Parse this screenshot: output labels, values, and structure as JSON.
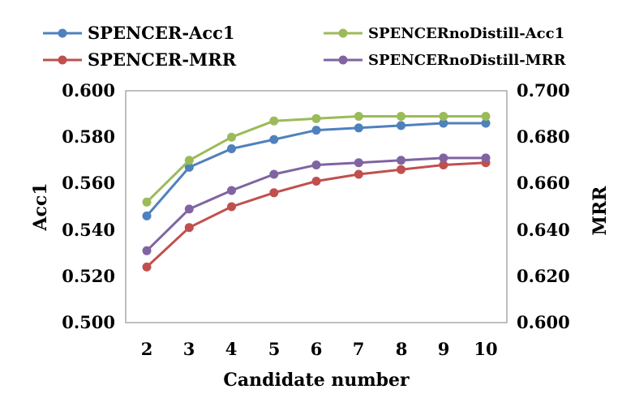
{
  "chart_data": {
    "type": "line",
    "xlabel": "Candidate number",
    "ylabel_left": "Acc1",
    "ylabel_right": "MRR",
    "categories": [
      "2",
      "3",
      "4",
      "5",
      "6",
      "7",
      "8",
      "9",
      "10"
    ],
    "ylim_left": [
      0.5,
      0.6
    ],
    "ylim_right": [
      0.6,
      0.7
    ],
    "yticks_left": [
      "0.500",
      "0.520",
      "0.540",
      "0.560",
      "0.580",
      "0.600"
    ],
    "yticks_right": [
      "0.600",
      "0.620",
      "0.640",
      "0.660",
      "0.680",
      "0.700"
    ],
    "series": [
      {
        "name": "SPENCER-Acc1",
        "axis": "left",
        "color": "#4F81BD",
        "values": [
          0.546,
          0.567,
          0.575,
          0.579,
          0.583,
          0.584,
          0.585,
          0.586,
          0.586
        ]
      },
      {
        "name": "SPENCER-MRR",
        "axis": "right",
        "color": "#C0504D",
        "values": [
          0.624,
          0.641,
          0.65,
          0.656,
          0.661,
          0.664,
          0.666,
          0.668,
          0.669
        ]
      },
      {
        "name": "SPENCERnoDistill-Acc1",
        "axis": "left",
        "color": "#9BBB59",
        "values": [
          0.552,
          0.57,
          0.58,
          0.587,
          0.588,
          0.589,
          0.589,
          0.589,
          0.589
        ]
      },
      {
        "name": "SPENCERnoDistill-MRR",
        "axis": "right",
        "color": "#8064A2",
        "values": [
          0.631,
          0.649,
          0.657,
          0.664,
          0.668,
          0.669,
          0.67,
          0.671,
          0.671
        ]
      }
    ],
    "legend_position": "top"
  }
}
